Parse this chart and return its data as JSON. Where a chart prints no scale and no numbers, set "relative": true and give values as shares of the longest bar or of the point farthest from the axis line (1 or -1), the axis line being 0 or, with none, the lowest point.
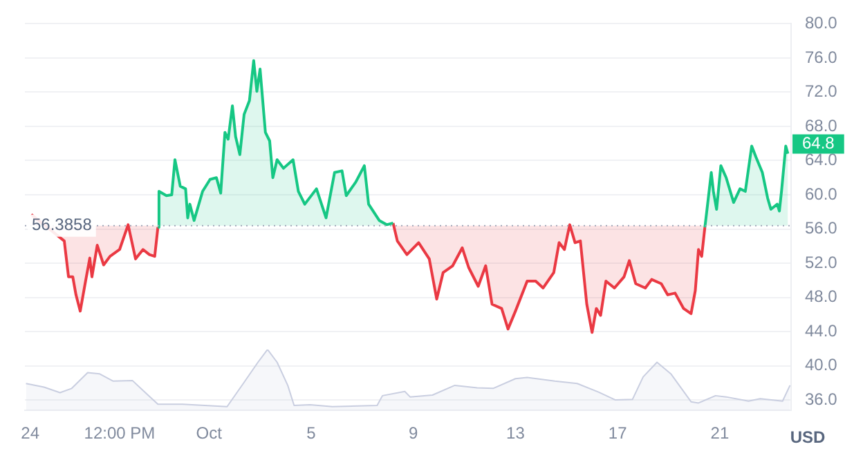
{
  "chart_data": [
    {
      "type": "area",
      "ylabel": "USD",
      "xlim": [
        "--09-23T19:00",
        "--10-23T19:00"
      ],
      "ylim": [
        34.8,
        80
      ],
      "yticks": [
        {
          "value": 36,
          "label": "36.0"
        },
        {
          "value": 40,
          "label": "40.0"
        },
        {
          "value": 44,
          "label": "44.0"
        },
        {
          "value": 48,
          "label": "48.0"
        },
        {
          "value": 52,
          "label": "52.0"
        },
        {
          "value": 56,
          "label": "56.0"
        },
        {
          "value": 60,
          "label": "60.0"
        },
        {
          "value": 64,
          "label": "64.0"
        },
        {
          "value": 68,
          "label": "68.0"
        },
        {
          "value": 72,
          "label": "72.0"
        },
        {
          "value": 76,
          "label": "76.0"
        },
        {
          "value": 80,
          "label": "80.0"
        }
      ],
      "grid": "y",
      "tick_labels": "y",
      "ref_lines": [
        {
          "axis": "y",
          "value": 56.3858,
          "label": "56.3858",
          "color": "#a0a7b8",
          "line_style": "dotted"
        }
      ],
      "annotations": [
        "64.8"
      ],
      "series": [
        {
          "color": "#16c784",
          "x": [
            "--09-29T00:00",
            "--09-29T01:00",
            "--09-29T08:00",
            "--09-29T13:00",
            "--09-29T16:00",
            "--09-29T21:00",
            "--09-30T02:00",
            "--09-30T04:00",
            "--09-30T06:00",
            "--09-30T10:00",
            "--09-30T18:00",
            "--10-01T01:00",
            "--10-01T07:00",
            "--10-01T11:00",
            "--10-01T15:00",
            "--10-01T18:00",
            "--10-01T22:00",
            "--10-02T01:00",
            "--10-02T05:00",
            "--10-02T09:00",
            "--10-02T14:00",
            "--10-02T18:00",
            "--10-02T21:00",
            "--10-03T00:00",
            "--10-03T05:00",
            "--10-03T09:00",
            "--10-03T12:00",
            "--10-03T16:00",
            "--10-03T22:00",
            "--10-04T07:00",
            "--10-04T12:00",
            "--10-04T18:00",
            "--10-05T05:00",
            "--10-05T14:00",
            "--10-05T22:00",
            "--10-06T05:00",
            "--10-06T09:00",
            "--10-06T18:00",
            "--10-07T02:00",
            "--10-07T06:00",
            "--10-07T16:00",
            "--10-07T23:00",
            "--10-08T05:00",
            "--10-14T00:00",
            "--10-20T10:00",
            "--10-20T12:00",
            "--10-20T16:00",
            "--10-20T18:00",
            "--10-20T21:00",
            "--10-21T01:00",
            "--10-21T06:00",
            "--10-21T13:00",
            "--10-21T19:00",
            "--10-22T00:00",
            "--10-22T06:00",
            "--10-22T10:00",
            "--10-22T16:00",
            "--10-22T21:00",
            "--10-23T00:00",
            "--10-23T06:00",
            "--10-23T08:00",
            "--10-23T10:00",
            "--10-23T14:00",
            "--10-23T16:00"
          ],
          "values": [
            56.2,
            60.4,
            59.9,
            60.0,
            64.1,
            61.0,
            60.7,
            57.3,
            58.9,
            57.0,
            60.4,
            61.8,
            62.0,
            60.2,
            67.3,
            66.5,
            70.4,
            66.8,
            64.7,
            69.4,
            71.0,
            75.7,
            72.1,
            74.7,
            67.3,
            66.3,
            62.0,
            64.1,
            63.1,
            64.1,
            60.4,
            58.9,
            60.7,
            57.3,
            62.6,
            62.8,
            59.9,
            61.5,
            63.4,
            58.9,
            57.0,
            56.5,
            56.7,
            null,
            56.2,
            58.3,
            62.6,
            60.4,
            58.3,
            63.4,
            62.0,
            59.1,
            60.7,
            60.4,
            65.7,
            64.4,
            62.6,
            59.6,
            58.3,
            58.9,
            58.1,
            60.4,
            65.7,
            64.8
          ]
        },
        {
          "color": "#ea3943",
          "x": [
            "--09-24T01:00",
            "--09-25T08:00",
            "--09-25T12:00",
            "--09-25T16:00",
            "--09-25T19:00",
            "--09-25T23:00",
            "--09-26T04:00",
            "--09-26T08:00",
            "--09-26T10:00",
            "--09-26T15:00",
            "--09-26T21:00",
            "--09-27T03:00",
            "--09-27T12:00",
            "--09-27T20:00",
            "--09-28T03:00",
            "--09-28T10:00",
            "--09-28T16:00",
            "--09-28T21:00",
            "--09-29T00:00",
            "--10-03T00:00",
            "--10-08T05:00",
            "--10-08T09:00",
            "--10-08T18:00",
            "--10-09T05:00",
            "--10-09T15:00",
            "--10-09T22:00",
            "--10-10T04:00",
            "--10-10T13:00",
            "--10-10T22:00",
            "--10-11T04:00",
            "--10-11T13:00",
            "--10-11T20:00",
            "--10-12T02:00",
            "--10-12T11:00",
            "--10-12T17:00",
            "--10-13T00:00",
            "--10-13T11:00",
            "--10-13T19:00",
            "--10-14T02:00",
            "--10-14T12:00",
            "--10-14T17:00",
            "--10-14T22:00",
            "--10-15T03:00",
            "--10-15T08:00",
            "--10-15T13:00",
            "--10-15T19:00",
            "--10-16T00:00",
            "--10-16T04:00",
            "--10-16T08:00",
            "--10-16T13:00",
            "--10-16T21:00",
            "--10-17T06:00",
            "--10-17T11:00",
            "--10-17T17:00",
            "--10-18T02:00",
            "--10-18T08:00",
            "--10-18T17:00",
            "--10-18T23:00",
            "--10-19T06:00",
            "--10-19T14:00",
            "--10-19T21:00",
            "--10-20T01:00",
            "--10-20T04:00",
            "--10-20T07:00",
            "--10-20T10:00"
          ],
          "values": [
            57.7,
            54.6,
            50.4,
            50.4,
            48.3,
            46.4,
            49.9,
            52.6,
            50.4,
            54.1,
            51.8,
            52.8,
            53.6,
            56.5,
            52.5,
            53.6,
            53.0,
            52.8,
            56.2,
            null,
            56.7,
            54.6,
            53.0,
            54.4,
            52.5,
            47.8,
            50.9,
            51.7,
            53.8,
            51.5,
            49.3,
            51.7,
            47.2,
            46.7,
            44.3,
            46.4,
            49.9,
            49.9,
            49.1,
            50.9,
            54.4,
            53.6,
            56.5,
            54.4,
            54.6,
            47.2,
            43.9,
            46.7,
            45.9,
            49.9,
            49.1,
            50.4,
            52.3,
            49.6,
            49.1,
            50.1,
            49.6,
            48.3,
            48.5,
            46.7,
            46.1,
            48.8,
            53.6,
            52.8,
            56.2
          ]
        }
      ]
    },
    {
      "type": "area",
      "relative": true,
      "xlim": [
        "--09-23T19:00",
        "--10-23T19:00"
      ],
      "tick_labels": "x",
      "xticks": [
        {
          "value": "--09-24",
          "label": "24"
        },
        {
          "value": "--09-27T12:00",
          "label": "12:00 PM"
        },
        {
          "value": "--10-01",
          "label": "Oct"
        },
        {
          "value": "--10-05",
          "label": "5"
        },
        {
          "value": "--10-09",
          "label": "9"
        },
        {
          "value": "--10-13",
          "label": "13"
        },
        {
          "value": "--10-17",
          "label": "17"
        },
        {
          "value": "--10-21",
          "label": "21"
        }
      ],
      "series": [
        {
          "color": "#c9cee0",
          "x": [
            "--09-23T20:00",
            "--09-24T13:00",
            "--09-25T04:00",
            "--09-25T15:00",
            "--09-26T06:00",
            "--09-26T17:00",
            "--09-27T06:00",
            "--09-28T00:00",
            "--09-28T11:00",
            "--09-29T00:00",
            "--09-29T23:00",
            "--10-01T17:00",
            "--10-02T09:00",
            "--10-02T22:00",
            "--10-03T07:00",
            "--10-03T16:00",
            "--10-04T02:00",
            "--10-04T08:00",
            "--10-04T23:00",
            "--10-05T20:00",
            "--10-07T14:00",
            "--10-07T19:00",
            "--10-08T16:00",
            "--10-08T21:00",
            "--10-09T18:00",
            "--10-10T15:00",
            "--10-11T12:00",
            "--10-12T03:00",
            "--10-13T00:00",
            "--10-13T11:00",
            "--10-14T13:00",
            "--10-15T10:00",
            "--10-16T06:00",
            "--10-16T22:00",
            "--10-17T14:00",
            "--10-18T00:00",
            "--10-18T13:00",
            "--10-19T02:00",
            "--10-19T21:00",
            "--10-20T04:00",
            "--10-20T20:00",
            "--10-21T06:00",
            "--10-22T03:00",
            "--10-22T14:00",
            "--10-23T11:00",
            "--10-23T18:00"
          ],
          "values": [
            0.44,
            0.38,
            0.29,
            0.36,
            0.62,
            0.6,
            0.48,
            0.49,
            0.31,
            0.1,
            0.1,
            0.06,
            0.46,
            0.79,
            1.0,
            0.79,
            0.41,
            0.08,
            0.09,
            0.06,
            0.08,
            0.24,
            0.31,
            0.22,
            0.25,
            0.41,
            0.37,
            0.36,
            0.52,
            0.54,
            0.48,
            0.44,
            0.3,
            0.17,
            0.18,
            0.55,
            0.79,
            0.6,
            0.14,
            0.12,
            0.24,
            0.22,
            0.15,
            0.19,
            0.15,
            0.41
          ]
        }
      ]
    }
  ]
}
